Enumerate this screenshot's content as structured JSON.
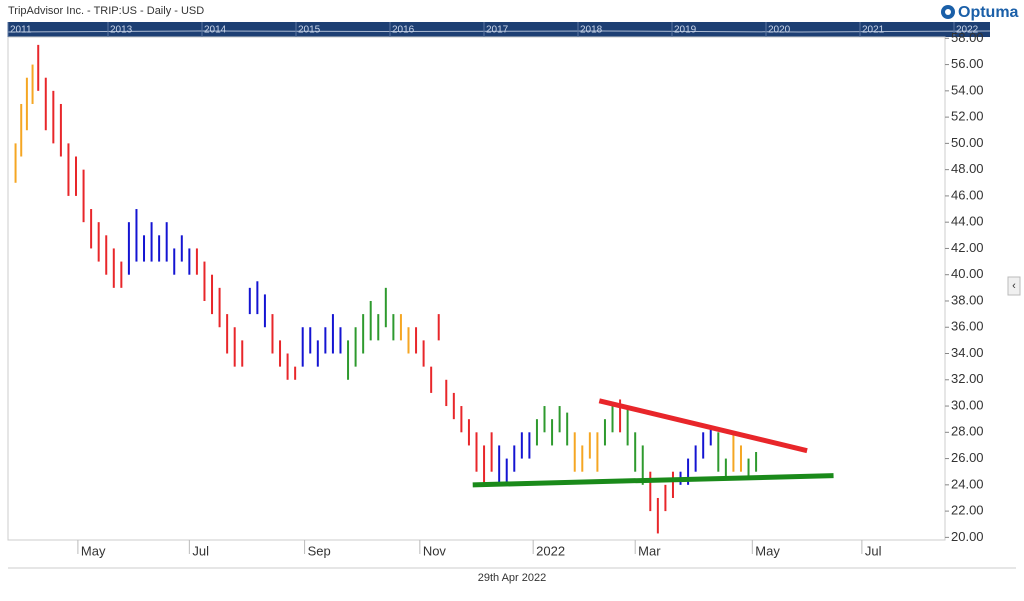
{
  "chart_data": {
    "type": "ohlc",
    "title": "TripAdvisor Inc. - TRIP:US - Daily - USD",
    "brand": "Optuma",
    "date_label": "29th Apr 2022",
    "navigator": {
      "years": [
        "2011",
        "2013",
        "2014",
        "2015",
        "2016",
        "2017",
        "2018",
        "2019",
        "2020",
        "2021",
        "2022"
      ]
    },
    "xlim": [
      -4,
      492
    ],
    "xticks": [
      {
        "value": 33,
        "label": "May"
      },
      {
        "value": 92,
        "label": "Jul"
      },
      {
        "value": 153,
        "label": "Sep"
      },
      {
        "value": 214,
        "label": "Nov"
      },
      {
        "value": 274,
        "label": "2022"
      },
      {
        "value": 328,
        "label": "Mar"
      },
      {
        "value": 390,
        "label": "May"
      },
      {
        "value": 448,
        "label": "Jul"
      }
    ],
    "ylim": [
      19.8,
      58.1
    ],
    "yticks": [
      {
        "value": 20,
        "label": "20.00"
      },
      {
        "value": 22,
        "label": "22.00"
      },
      {
        "value": 24,
        "label": "24.00"
      },
      {
        "value": 26,
        "label": "26.00"
      },
      {
        "value": 28,
        "label": "28.00"
      },
      {
        "value": 30,
        "label": "30.00"
      },
      {
        "value": 32,
        "label": "32.00"
      },
      {
        "value": 34,
        "label": "34.00"
      },
      {
        "value": 36,
        "label": "36.00"
      },
      {
        "value": 38,
        "label": "38.00"
      },
      {
        "value": 40,
        "label": "40.00"
      },
      {
        "value": 42,
        "label": "42.00"
      },
      {
        "value": 44,
        "label": "44.00"
      },
      {
        "value": 46,
        "label": "46.00"
      },
      {
        "value": 48,
        "label": "48.00"
      },
      {
        "value": 50,
        "label": "50.00"
      },
      {
        "value": 52,
        "label": "52.00"
      },
      {
        "value": 54,
        "label": "54.00"
      },
      {
        "value": 56,
        "label": "56.00"
      },
      {
        "value": 58,
        "label": "58.00"
      }
    ],
    "series": [
      {
        "color": "#f5a623",
        "x": [
          0,
          3,
          6,
          9
        ],
        "high": [
          50,
          53,
          55,
          56
        ],
        "low": [
          47,
          49,
          51,
          53
        ]
      },
      {
        "color": "#e8262a",
        "x": [
          12,
          16,
          20,
          24,
          28,
          32,
          36,
          40,
          44,
          48,
          52,
          56
        ],
        "high": [
          57.5,
          55,
          54,
          53,
          50,
          49,
          48,
          45,
          44,
          43,
          42,
          41
        ],
        "low": [
          54,
          51,
          50,
          49,
          46,
          46,
          44,
          42,
          41,
          40,
          39,
          39
        ]
      },
      {
        "color": "#1414d2",
        "x": [
          60,
          64,
          68,
          72,
          76,
          80,
          84,
          88,
          92
        ],
        "high": [
          44,
          45,
          43,
          44,
          43,
          44,
          42,
          43,
          42
        ],
        "low": [
          40,
          41,
          41,
          41,
          41,
          41,
          40,
          41,
          40
        ]
      },
      {
        "color": "#e8262a",
        "x": [
          96,
          100,
          104,
          108,
          112,
          116,
          120
        ],
        "high": [
          42,
          41,
          40,
          39,
          37,
          36,
          35
        ],
        "low": [
          40,
          38,
          37,
          36,
          34,
          33,
          33
        ]
      },
      {
        "color": "#1414d2",
        "x": [
          124,
          128,
          132
        ],
        "high": [
          39,
          39.5,
          38.5
        ],
        "low": [
          37,
          37,
          36
        ]
      },
      {
        "color": "#e8262a",
        "x": [
          136,
          140,
          144,
          148
        ],
        "high": [
          37,
          35,
          34,
          33
        ],
        "low": [
          34,
          33,
          32,
          32
        ]
      },
      {
        "color": "#1414d2",
        "x": [
          152,
          156,
          160,
          164,
          168,
          172
        ],
        "high": [
          36,
          36,
          35,
          36,
          37,
          36
        ],
        "low": [
          33,
          34,
          33,
          34,
          34,
          34
        ]
      },
      {
        "color": "#2e9a2e",
        "x": [
          176,
          180,
          184,
          188,
          192,
          196,
          200
        ],
        "high": [
          35,
          36,
          37,
          38,
          37,
          39,
          37
        ],
        "low": [
          32,
          33,
          34,
          35,
          35,
          36,
          35
        ]
      },
      {
        "color": "#f5a623",
        "x": [
          204,
          208
        ],
        "high": [
          37,
          36
        ],
        "low": [
          35,
          34
        ]
      },
      {
        "color": "#e8262a",
        "x": [
          212,
          216,
          220,
          224,
          228,
          232,
          236,
          240,
          244,
          248,
          252
        ],
        "high": [
          36,
          35,
          33,
          37,
          32,
          31,
          30,
          29,
          28,
          27,
          28
        ],
        "low": [
          34,
          33,
          31,
          35,
          30,
          29,
          28,
          27,
          25,
          24,
          25
        ]
      },
      {
        "color": "#1414d2",
        "x": [
          256,
          260,
          264,
          268,
          272
        ],
        "high": [
          27,
          26,
          27,
          28,
          28
        ],
        "low": [
          24,
          24,
          25,
          26,
          26
        ]
      },
      {
        "color": "#2e9a2e",
        "x": [
          276,
          280,
          284,
          288,
          292
        ],
        "high": [
          29,
          30,
          29,
          30,
          29.5
        ],
        "low": [
          27,
          28,
          27,
          28,
          27
        ]
      },
      {
        "color": "#f5a623",
        "x": [
          296,
          300,
          304,
          308
        ],
        "high": [
          28,
          27,
          28,
          28
        ],
        "low": [
          25,
          25,
          26,
          25
        ]
      },
      {
        "color": "#2e9a2e",
        "x": [
          312,
          316
        ],
        "high": [
          29,
          30
        ],
        "low": [
          27,
          28
        ]
      },
      {
        "color": "#e8262a",
        "x": [
          320
        ],
        "high": [
          30.5
        ],
        "low": [
          28
        ]
      },
      {
        "color": "#2e9a2e",
        "x": [
          324,
          328,
          332
        ],
        "high": [
          30,
          28,
          27
        ],
        "low": [
          27,
          25,
          24
        ]
      },
      {
        "color": "#e8262a",
        "x": [
          336,
          340,
          344,
          348
        ],
        "high": [
          25,
          23,
          24,
          25
        ],
        "low": [
          22,
          20.3,
          22,
          23
        ]
      },
      {
        "color": "#1414d2",
        "x": [
          352,
          356,
          360,
          364,
          368
        ],
        "high": [
          25,
          26,
          27,
          28,
          28.5
        ],
        "low": [
          24,
          24,
          25,
          26,
          27
        ]
      },
      {
        "color": "#2e9a2e",
        "x": [
          372,
          376
        ],
        "high": [
          28,
          26
        ],
        "low": [
          25,
          24.5
        ]
      },
      {
        "color": "#f5a623",
        "x": [
          380,
          384
        ],
        "high": [
          28,
          27
        ],
        "low": [
          25,
          25
        ]
      },
      {
        "color": "#2e9a2e",
        "x": [
          388,
          392
        ],
        "high": [
          26,
          26.5
        ],
        "low": [
          24.5,
          25
        ]
      }
    ],
    "trendlines": [
      {
        "color": "#e8262a",
        "x": [
          309,
          419
        ],
        "values": [
          30.4,
          26.6
        ]
      },
      {
        "color": "#1a8a1a",
        "x": [
          242,
          433
        ],
        "values": [
          24.0,
          24.7
        ]
      }
    ]
  }
}
